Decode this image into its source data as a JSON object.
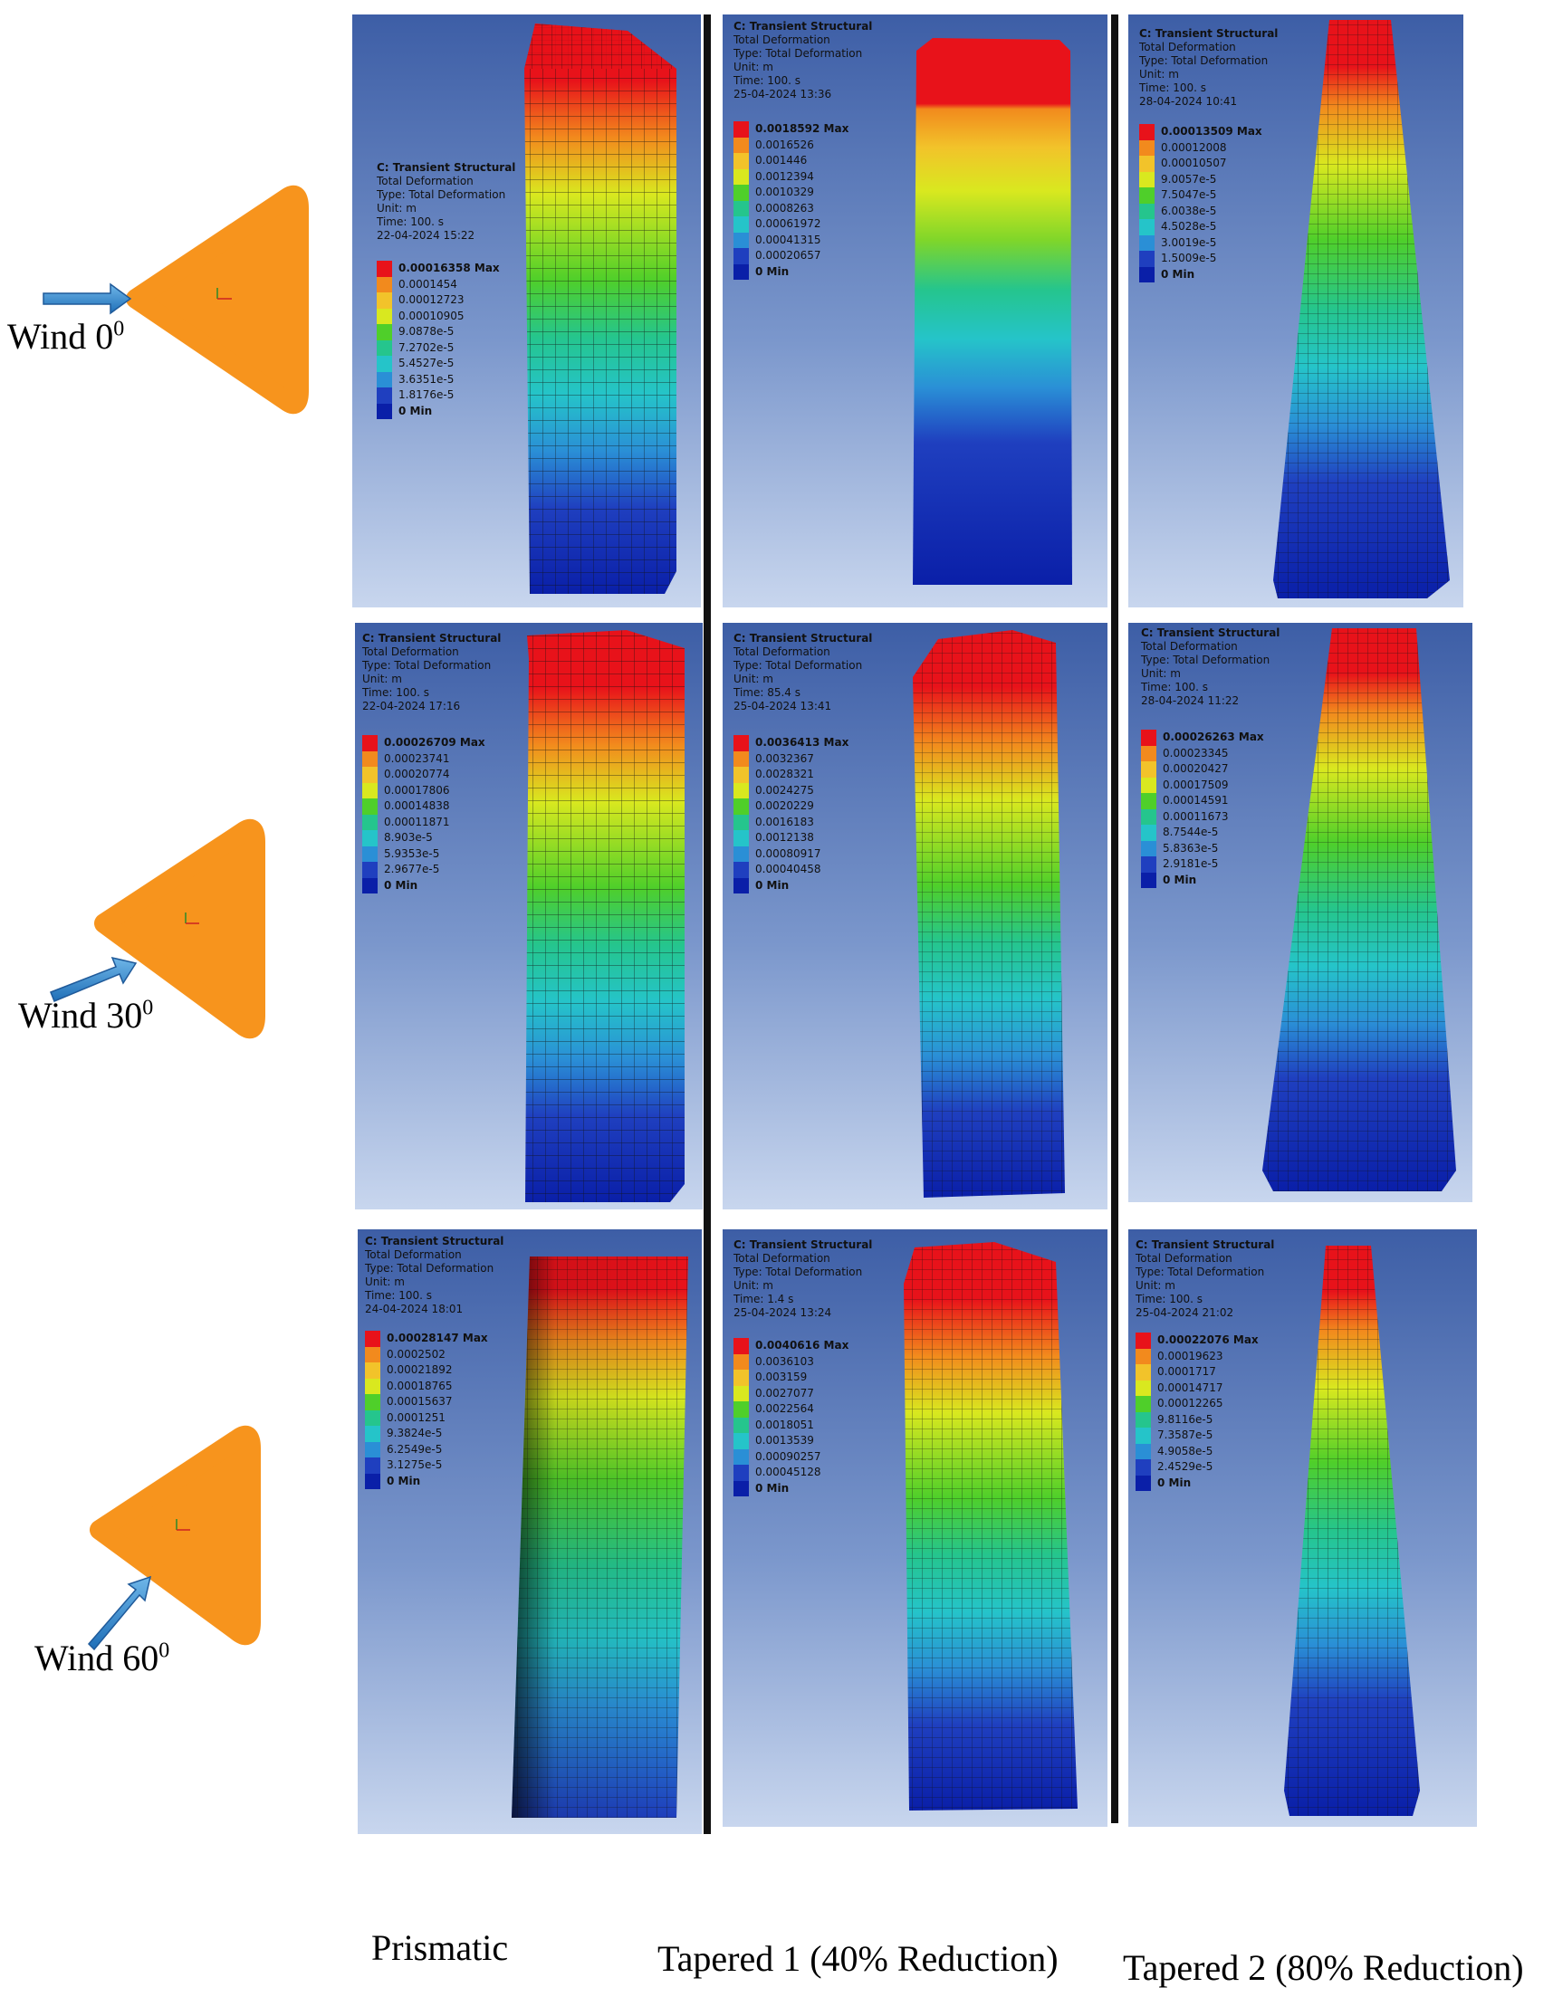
{
  "row_labels": [
    {
      "text": "Wind 0",
      "sup": "0"
    },
    {
      "text": "Wind 30",
      "sup": "0"
    },
    {
      "text": "Wind 60",
      "sup": "0"
    }
  ],
  "column_labels": [
    "Prismatic",
    "Tapered 1 (40% Reduction)",
    "Tapered 2 (80% Reduction)"
  ],
  "contour_colors": [
    "#e8121a",
    "#f28a1d",
    "#f2c32a",
    "#d9e81f",
    "#4fcf2a",
    "#25c58d",
    "#25c4c9",
    "#2a8fd6",
    "#1f3fbf",
    "#0a1fa8"
  ],
  "panels": [
    {
      "title": "C: Transient Structural",
      "lines": [
        "Total Deformation",
        "Type: Total Deformation",
        "Unit: m",
        "Time: 100. s",
        "22-04-2024 15:22"
      ],
      "legend": [
        "0.00016358 Max",
        "0.0001454",
        "0.00012723",
        "0.00010905",
        "9.0878e-5",
        "7.2702e-5",
        "5.4527e-5",
        "3.6351e-5",
        "1.8176e-5",
        "0 Min"
      ]
    },
    {
      "title": "C: Transient Structural",
      "lines": [
        "Total Deformation",
        "Type: Total Deformation",
        "Unit: m",
        "Time: 100. s",
        "25-04-2024 13:36"
      ],
      "legend": [
        "0.0018592 Max",
        "0.0016526",
        "0.001446",
        "0.0012394",
        "0.0010329",
        "0.0008263",
        "0.00061972",
        "0.00041315",
        "0.00020657",
        "0 Min"
      ]
    },
    {
      "title": "C: Transient Structural",
      "lines": [
        "Total Deformation",
        "Type: Total Deformation",
        "Unit: m",
        "Time: 100. s",
        "28-04-2024 10:41"
      ],
      "legend": [
        "0.00013509 Max",
        "0.00012008",
        "0.00010507",
        "9.0057e-5",
        "7.5047e-5",
        "6.0038e-5",
        "4.5028e-5",
        "3.0019e-5",
        "1.5009e-5",
        "0 Min"
      ]
    },
    {
      "title": "C: Transient Structural",
      "lines": [
        "Total Deformation",
        "Type: Total Deformation",
        "Unit: m",
        "Time: 100. s",
        "22-04-2024 17:16"
      ],
      "legend": [
        "0.00026709 Max",
        "0.00023741",
        "0.00020774",
        "0.00017806",
        "0.00014838",
        "0.00011871",
        "8.903e-5",
        "5.9353e-5",
        "2.9677e-5",
        "0 Min"
      ]
    },
    {
      "title": "C: Transient Structural",
      "lines": [
        "Total Deformation",
        "Type: Total Deformation",
        "Unit: m",
        "Time: 85.4 s",
        "25-04-2024 13:41"
      ],
      "legend": [
        "0.0036413 Max",
        "0.0032367",
        "0.0028321",
        "0.0024275",
        "0.0020229",
        "0.0016183",
        "0.0012138",
        "0.00080917",
        "0.00040458",
        "0 Min"
      ]
    },
    {
      "title": "C: Transient Structural",
      "lines": [
        "Total Deformation",
        "Type: Total Deformation",
        "Unit: m",
        "Time: 100. s",
        "28-04-2024 11:22"
      ],
      "legend": [
        "0.00026263 Max",
        "0.00023345",
        "0.00020427",
        "0.00017509",
        "0.00014591",
        "0.00011673",
        "8.7544e-5",
        "5.8363e-5",
        "2.9181e-5",
        "0 Min"
      ]
    },
    {
      "title": "C: Transient Structural",
      "lines": [
        "Total Deformation",
        "Type: Total Deformation",
        "Unit: m",
        "Time: 100. s",
        "24-04-2024 18:01"
      ],
      "legend": [
        "0.00028147 Max",
        "0.0002502",
        "0.00021892",
        "0.00018765",
        "0.00015637",
        "0.0001251",
        "9.3824e-5",
        "6.2549e-5",
        "3.1275e-5",
        "0 Min"
      ]
    },
    {
      "title": "C: Transient Structural",
      "lines": [
        "Total Deformation",
        "Type: Total Deformation",
        "Unit: m",
        "Time: 1.4 s",
        "25-04-2024 13:24"
      ],
      "legend": [
        "0.0040616 Max",
        "0.0036103",
        "0.003159",
        "0.0027077",
        "0.0022564",
        "0.0018051",
        "0.0013539",
        "0.00090257",
        "0.00045128",
        "0 Min"
      ]
    },
    {
      "title": "C: Transient Structural",
      "lines": [
        "Total Deformation",
        "Type: Total Deformation",
        "Unit: m",
        "Time: 100. s",
        "25-04-2024 21:02"
      ],
      "legend": [
        "0.00022076 Max",
        "0.00019623",
        "0.0001717",
        "0.00014717",
        "0.00012265",
        "9.8116e-5",
        "7.3587e-5",
        "4.9058e-5",
        "2.4529e-5",
        "0 Min"
      ]
    }
  ]
}
